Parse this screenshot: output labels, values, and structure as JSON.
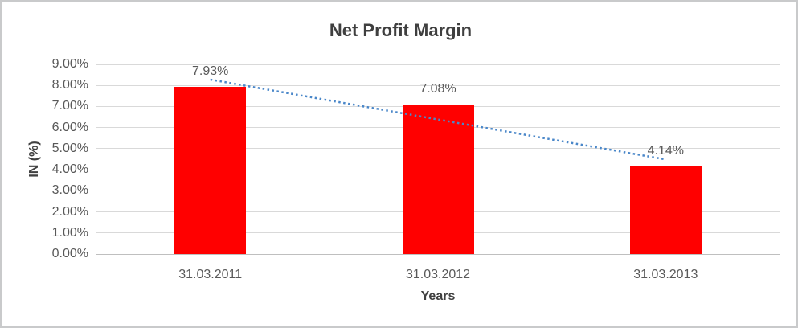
{
  "chart_data": {
    "type": "bar",
    "title": "Net Profit Margin",
    "categories": [
      "31.03.2011",
      "31.03.2012",
      "31.03.2013"
    ],
    "values": [
      7.93,
      7.08,
      4.14
    ],
    "data_labels": [
      "7.93%",
      "7.08%",
      "4.14%"
    ],
    "xlabel": "Years",
    "ylabel": "IN (%)",
    "ylim": [
      0,
      9
    ],
    "ytick_step": 1,
    "ytick_labels": [
      "0.00%",
      "1.00%",
      "2.00%",
      "3.00%",
      "4.00%",
      "5.00%",
      "6.00%",
      "7.00%",
      "8.00%",
      "9.00%"
    ],
    "grid": true,
    "legend": "none",
    "bar_color": "#ff0000",
    "gridline_color": "#d9d9d9",
    "axis_line_color": "#bfbfbf",
    "trendline": {
      "type": "linear",
      "style": "dotted",
      "color": "#4a87c9"
    }
  }
}
